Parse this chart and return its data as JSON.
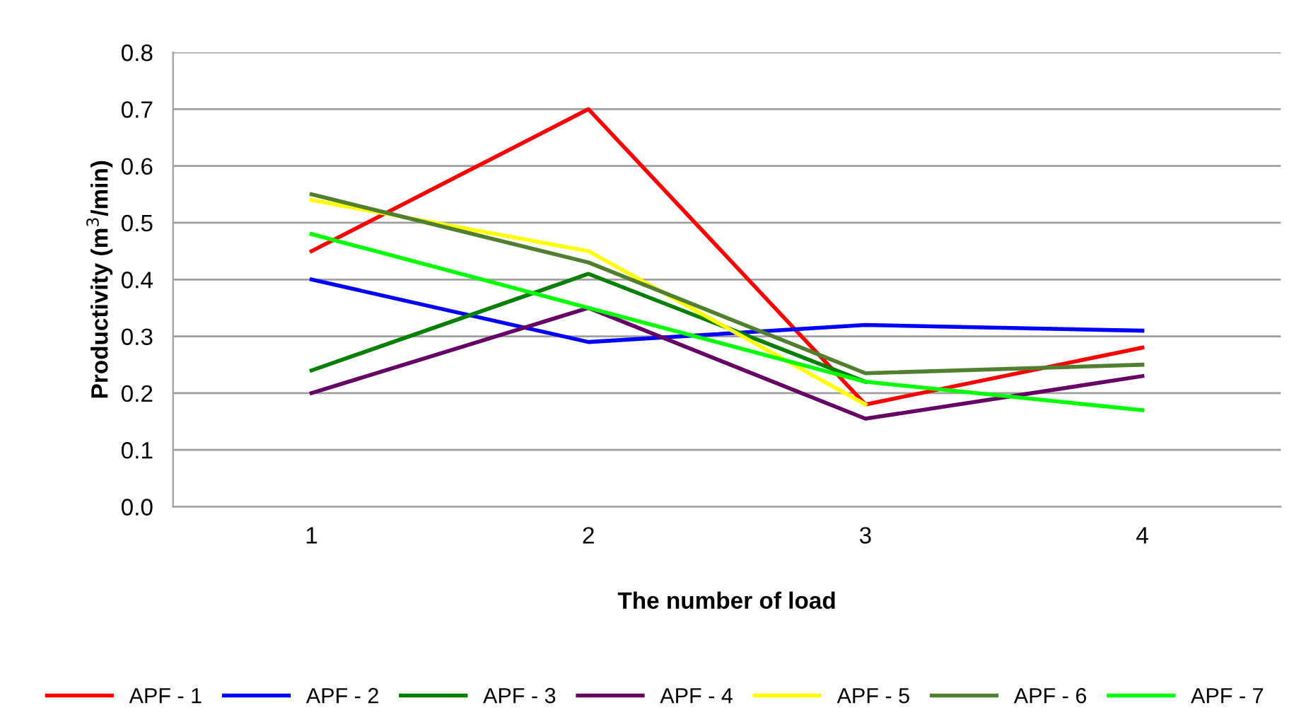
{
  "chart_data": {
    "type": "line",
    "xlabel": "The number of load",
    "ylabel": "Productivity (m$^{3}$/min)",
    "categories": [
      "1",
      "2",
      "3",
      "4"
    ],
    "ylim": [
      0,
      0.8
    ],
    "yticks": [
      {
        "value": 0,
        "label": "0.0"
      },
      0.1,
      0.2,
      0.3,
      0.4,
      0.5,
      0.6,
      0.7,
      0.8
    ],
    "grid": "y",
    "legend": "bottom",
    "marker": "none",
    "line_style": "solid",
    "series": [
      {
        "name": "APF - 1",
        "color": "#ff0000",
        "values": [
          0.45,
          0.7,
          0.18,
          0.28
        ]
      },
      {
        "name": "APF - 2",
        "color": "#0000ff",
        "values": [
          0.4,
          0.29,
          0.32,
          0.31
        ]
      },
      {
        "name": "APF - 3",
        "color": "#007f00",
        "values": [
          0.24,
          0.41,
          0.22,
          null
        ]
      },
      {
        "name": "APF - 4",
        "color": "#660066",
        "values": [
          0.2,
          0.35,
          0.155,
          0.23
        ]
      },
      {
        "name": "APF - 5",
        "color": "#ffff00",
        "values": [
          0.54,
          0.45,
          0.18,
          null
        ]
      },
      {
        "name": "APF - 6",
        "color": "#4f7f2f",
        "values": [
          0.55,
          0.43,
          0.235,
          0.25
        ]
      },
      {
        "name": "APF - 7",
        "color": "#00ff00",
        "values": [
          0.48,
          0.35,
          0.22,
          0.17
        ]
      }
    ]
  }
}
